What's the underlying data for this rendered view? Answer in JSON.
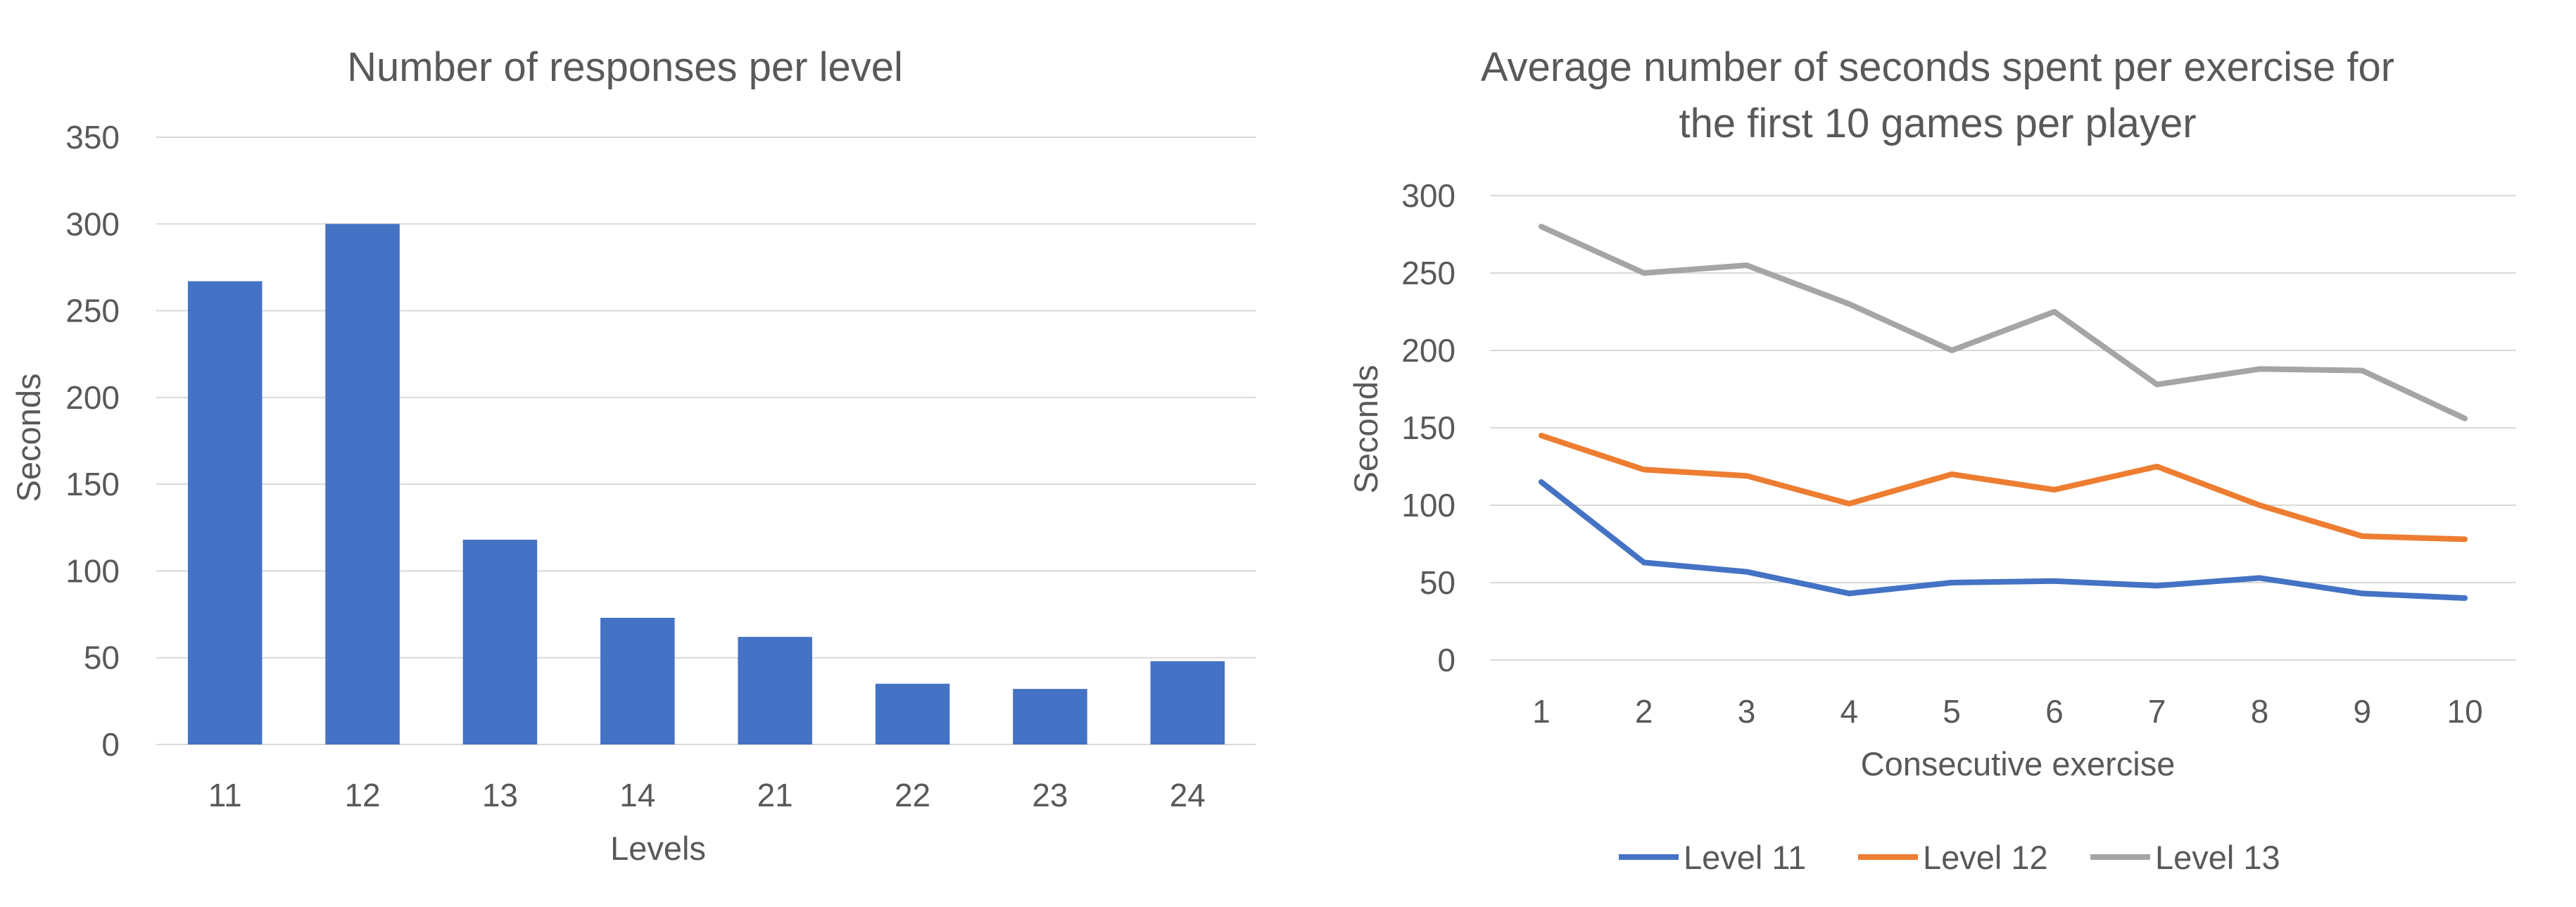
{
  "chart_data": [
    {
      "type": "bar",
      "title": "Number of responses per level",
      "xlabel": "Levels",
      "ylabel": "Seconds",
      "categories": [
        "11",
        "12",
        "13",
        "14",
        "21",
        "22",
        "23",
        "24"
      ],
      "values": [
        267,
        300,
        118,
        73,
        62,
        35,
        32,
        48
      ],
      "ylim": [
        0,
        350
      ],
      "yticks": [
        "0",
        "50",
        "100",
        "150",
        "200",
        "250",
        "300",
        "350"
      ],
      "grid": true,
      "color": "#4472C4"
    },
    {
      "type": "line",
      "title_lines": [
        "Average number of seconds spent per exercise for",
        "the first 10 games per player"
      ],
      "xlabel": "Consecutive exercise",
      "ylabel": "Seconds",
      "x": [
        "1",
        "2",
        "3",
        "4",
        "5",
        "6",
        "7",
        "8",
        "9",
        "10"
      ],
      "ylim": [
        0,
        300
      ],
      "yticks": [
        "0",
        "50",
        "100",
        "150",
        "200",
        "250",
        "300"
      ],
      "grid": true,
      "legend_position": "bottom",
      "series": [
        {
          "name": "Level  11",
          "color": "#4472C4",
          "values": [
            115,
            63,
            57,
            43,
            50,
            51,
            48,
            53,
            43,
            40
          ]
        },
        {
          "name": "Level 12",
          "color": "#ED7D31",
          "values": [
            145,
            123,
            119,
            101,
            120,
            110,
            125,
            100,
            80,
            78
          ]
        },
        {
          "name": "Level 13",
          "color": "#A5A5A5",
          "values": [
            280,
            250,
            255,
            230,
            200,
            225,
            178,
            188,
            187,
            156
          ]
        }
      ]
    }
  ]
}
